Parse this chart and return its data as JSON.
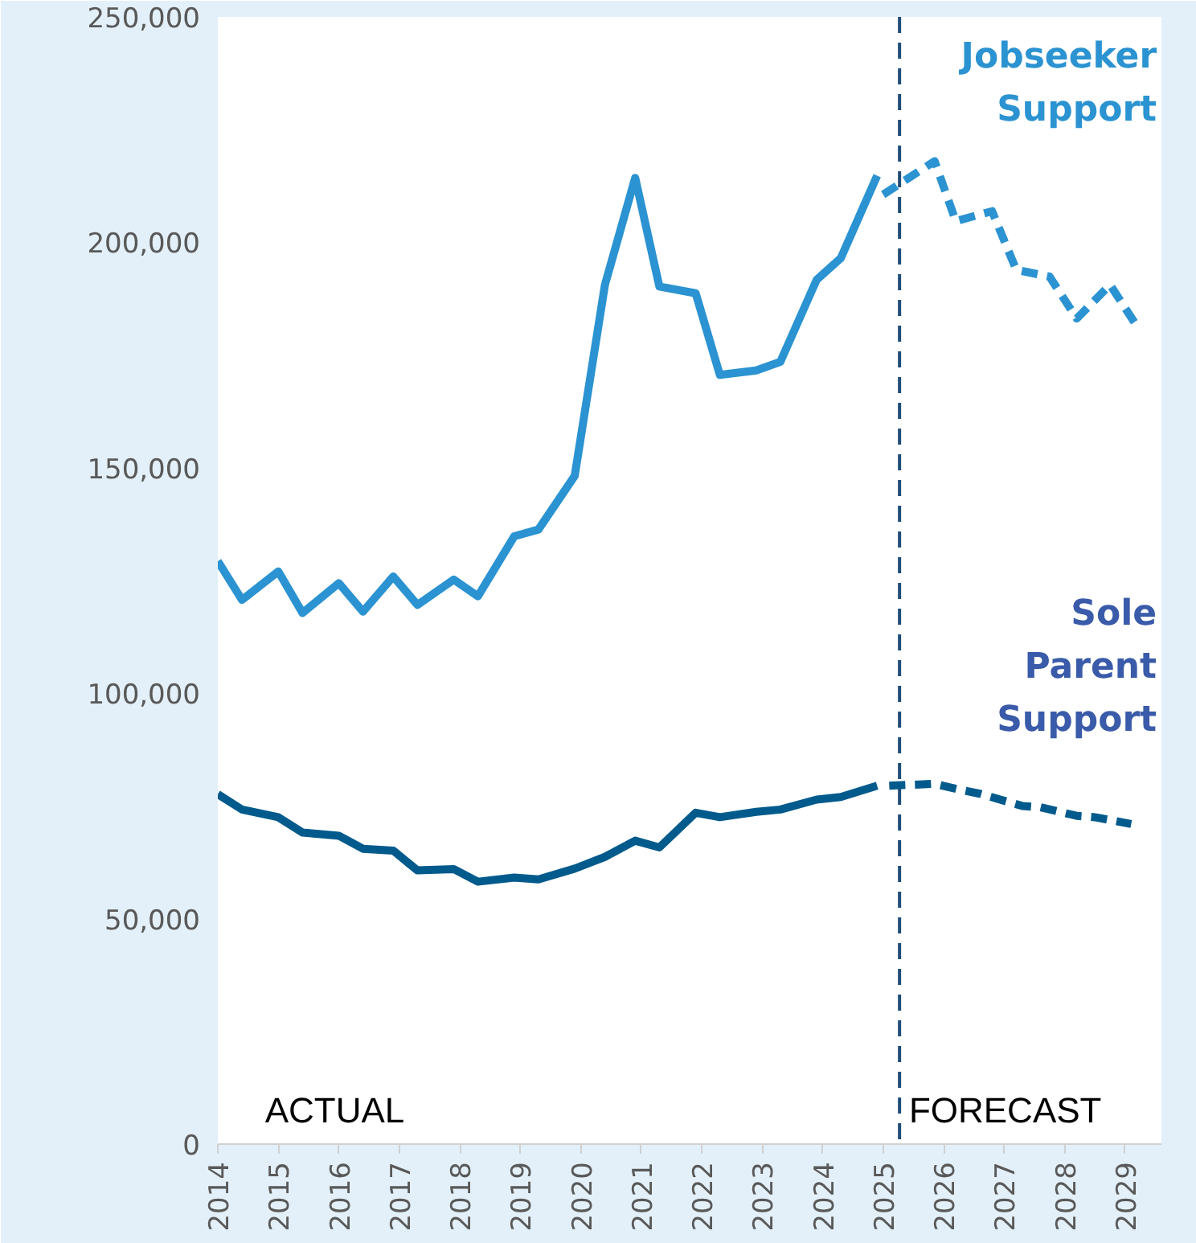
{
  "chart_data": {
    "type": "line",
    "x": [
      2014.0,
      2014.4,
      2015.0,
      2015.4,
      2016.0,
      2016.4,
      2016.9,
      2017.3,
      2017.9,
      2018.3,
      2018.9,
      2019.3,
      2019.9,
      2020.4,
      2020.9,
      2021.3,
      2021.9,
      2022.3,
      2022.9,
      2023.3,
      2023.9,
      2024.3,
      2024.9
    ],
    "series": [
      {
        "name": "Jobseeker Support",
        "color": "#2b93d1",
        "line_style": "solid",
        "values": [
          129300,
          120700,
          127000,
          117800,
          124400,
          118100,
          125900,
          119600,
          125200,
          121500,
          134800,
          136300,
          148200,
          190600,
          214300,
          190200,
          188700,
          170600,
          171600,
          173500,
          191700,
          196500,
          214800
        ]
      },
      {
        "color": "#2b93d1",
        "line_style": "dashed",
        "x": [
          2025.0,
          2025.85,
          2026.2,
          2026.8,
          2027.2,
          2027.75,
          2028.2,
          2028.75,
          2029.2
        ],
        "values": [
          210600,
          218000,
          204700,
          206900,
          193900,
          192400,
          183100,
          190600,
          181300
        ]
      },
      {
        "name": "Sole Parent Support",
        "color": "#005a8c",
        "line_style": "solid",
        "values": [
          77600,
          74200,
          72500,
          69100,
          68400,
          65500,
          65100,
          60700,
          61000,
          58200,
          59100,
          58700,
          61100,
          63700,
          67300,
          65800,
          73500,
          72500,
          73700,
          74200,
          76400,
          77000,
          79500
        ]
      },
      {
        "color": "#005a8c",
        "line_style": "dashed",
        "x": [
          2025.1,
          2025.85,
          2026.3,
          2026.6,
          2027.3,
          2027.6,
          2028.2,
          2028.5,
          2029.1
        ],
        "values": [
          79500,
          79900,
          78500,
          77700,
          75000,
          74700,
          72800,
          72500,
          71000
        ]
      }
    ],
    "xlim": [
      2014,
      2029.6
    ],
    "xticks": [
      2014,
      2015,
      2016,
      2017,
      2018,
      2019,
      2020,
      2021,
      2022,
      2023,
      2024,
      2025,
      2026,
      2027,
      2028,
      2029
    ],
    "ylim": [
      0,
      250000
    ],
    "yticks": [
      0,
      {
        "value": 50000,
        "label": "50,000"
      },
      {
        "value": 100000,
        "label": "100,000"
      },
      {
        "value": 150000,
        "label": "150,000"
      },
      {
        "value": 200000,
        "label": "200,000"
      },
      {
        "value": 250000,
        "label": "250,000"
      }
    ],
    "ref_lines": [
      {
        "axis": "x",
        "value": 2025.27,
        "color": "#1f4e79",
        "line_style": "dashed"
      }
    ],
    "annotations": [
      "ACTUAL",
      "FORECAST"
    ]
  }
}
